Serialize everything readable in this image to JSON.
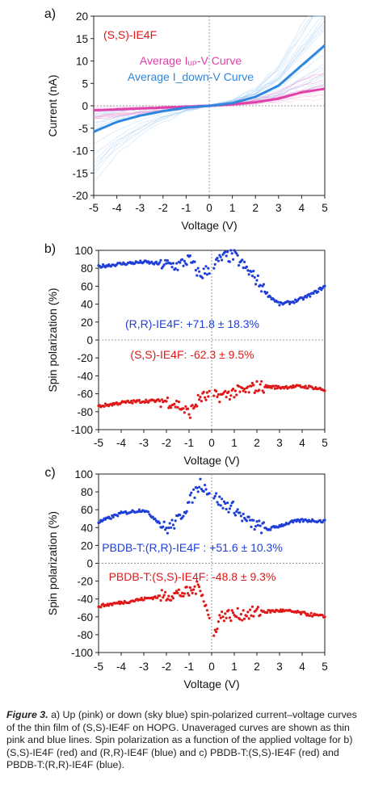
{
  "chart_data": [
    {
      "panel": "a)",
      "type": "line",
      "sample_label": "(S,S)-IE4F",
      "legend": [
        {
          "text": "Average Iᵤₚ-V Curve",
          "color": "#e040a8"
        },
        {
          "text": "Average I_down-V Curve",
          "color": "#2e86de"
        }
      ],
      "xlabel": "Voltage (V)",
      "ylabel": "Current (nA)",
      "xlim": [
        -5,
        5
      ],
      "ylim": [
        -20,
        20
      ],
      "xticks": [
        -5,
        -4,
        -3,
        -2,
        -1,
        0,
        1,
        2,
        3,
        4,
        5
      ],
      "yticks": [
        -20,
        -15,
        -10,
        -5,
        0,
        5,
        10,
        15,
        20
      ],
      "series": [
        {
          "name": "Average I_up-V Curve",
          "color": "#e040a8",
          "x": [
            -5,
            -4,
            -3,
            -2,
            -1,
            0,
            1,
            2,
            3,
            4,
            5
          ],
          "y": [
            -1.0,
            -0.8,
            -0.6,
            -0.4,
            -0.2,
            0,
            0.3,
            0.8,
            1.6,
            3.0,
            3.8
          ]
        },
        {
          "name": "Average I_down-V Curve",
          "color": "#2e86de",
          "x": [
            -5,
            -4,
            -3,
            -2,
            -1,
            0,
            1,
            2,
            3,
            4,
            5
          ],
          "y": [
            -5.8,
            -3.6,
            -2.2,
            -1.2,
            -0.4,
            0,
            0.6,
            2.0,
            4.5,
            9.0,
            13.5
          ]
        }
      ],
      "thin_curves": {
        "pink_count": 14,
        "blue_count": 22
      }
    },
    {
      "panel": "b)",
      "type": "scatter",
      "xlabel": "Voltage (V)",
      "ylabel": "Spin polarization (%)",
      "xlim": [
        -5,
        5
      ],
      "ylim": [
        -100,
        100
      ],
      "xticks": [
        -5,
        -4,
        -3,
        -2,
        -1,
        0,
        1,
        2,
        3,
        4,
        5
      ],
      "yticks": [
        -100,
        -80,
        -60,
        -40,
        -20,
        0,
        20,
        40,
        60,
        80,
        100
      ],
      "series": [
        {
          "name": "(R,R)-IE4F",
          "color": "#1f3fd8",
          "annotation": "(R,R)-IE4F: +71.8 ± 18.3%",
          "x": [
            -5,
            -4,
            -3,
            -2,
            -1.5,
            -1,
            -0.5,
            0.5,
            1,
            1.5,
            2,
            2.5,
            3,
            3.5,
            4,
            4.5,
            5
          ],
          "y": [
            82,
            85,
            87,
            84,
            83,
            90,
            72,
            92,
            94,
            80,
            67,
            50,
            40,
            42,
            46,
            52,
            60
          ]
        },
        {
          "name": "(S,S)-IE4F",
          "color": "#e01818",
          "annotation": "(S,S)-IE4F: -62.3 ± 9.5%",
          "x": [
            -5,
            -4,
            -3,
            -2,
            -1.5,
            -1,
            -0.5,
            0.5,
            1,
            1.5,
            2,
            2.5,
            3,
            3.5,
            4,
            4.5,
            5
          ],
          "y": [
            -74,
            -70,
            -68,
            -68,
            -72,
            -82,
            -64,
            -62,
            -58,
            -57,
            -52,
            -52,
            -53,
            -52,
            -52,
            -53,
            -56
          ]
        }
      ]
    },
    {
      "panel": "c)",
      "type": "scatter",
      "xlabel": "Voltage (V)",
      "ylabel": "Spin polarization (%)",
      "xlim": [
        -5,
        5
      ],
      "ylim": [
        -100,
        100
      ],
      "xticks": [
        -5,
        -4,
        -3,
        -2,
        -1,
        0,
        1,
        2,
        3,
        4,
        5
      ],
      "yticks": [
        -100,
        -80,
        -60,
        -40,
        -20,
        0,
        20,
        40,
        60,
        80,
        100
      ],
      "series": [
        {
          "name": "PBDB-T:(R,R)-IE4F",
          "color": "#1f3fd8",
          "annotation": "PBDB-T:(R,R)-IE4F : +51.6 ± 10.3%",
          "x": [
            -5,
            -4,
            -3,
            -2.5,
            -2,
            -1.5,
            -1,
            -0.5,
            0.5,
            1,
            1.5,
            2,
            2.5,
            3,
            3.5,
            4,
            4.5,
            5
          ],
          "y": [
            46,
            56,
            60,
            50,
            38,
            48,
            68,
            90,
            66,
            62,
            48,
            42,
            38,
            42,
            46,
            48,
            48,
            47
          ]
        },
        {
          "name": "PBDB-T:(S,S)-IE4F",
          "color": "#e01818",
          "annotation": "PBDB-T:(S,S)-IE4F: -48.8 ± 9.3%",
          "x": [
            -5,
            -4,
            -3,
            -2,
            -1.5,
            -1,
            -0.5,
            0.1,
            0.3,
            0.5,
            1,
            2,
            3,
            3.5,
            4,
            5
          ],
          "y": [
            -48,
            -44,
            -40,
            -36,
            -34,
            -33,
            -25,
            -82,
            -62,
            -58,
            -58,
            -55,
            -53,
            -54,
            -56,
            -60
          ]
        }
      ]
    }
  ],
  "caption": {
    "lead": "Figure 3.",
    "text": " a) Up (pink) or down (sky blue) spin-polarized current–voltage curves of the thin film of (S,S)-IE4F on HOPG. Unaveraged curves are shown as thin pink and blue lines. Spin polarization as a function of the applied voltage for b) (S,S)-IE4F (red) and (R,R)-IE4F (blue) and c) PBDB-T:(S,S)-IE4F (red) and PBDB-T:(R,R)-IE4F (blue)."
  }
}
